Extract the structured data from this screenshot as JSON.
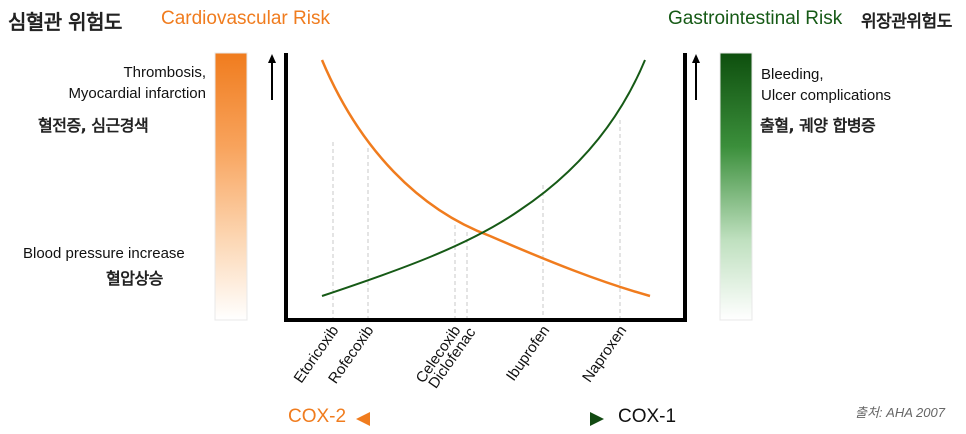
{
  "header": {
    "left_korean": "심혈관 위험도",
    "left_title": "Cardiovascular Risk",
    "right_title": "Gastrointestinal Risk",
    "right_korean": "위장관위험도"
  },
  "left_panel": {
    "top_label_en": "Thrombosis,\nMyocardial infarction",
    "top_label_ko": "혈전증, 심근경색",
    "bottom_label_en": "Blood pressure increase",
    "bottom_label_ko": "혈압상승"
  },
  "right_panel": {
    "top_label_en": "Bleeding,\nUlcer complications",
    "top_label_ko": "출혈, 궤양 합병증"
  },
  "drugs": [
    "Etoricoxib",
    "Rofecoxib",
    "Celecoxib",
    "Diclofenac",
    "Ibuprofen",
    "Naproxen"
  ],
  "axis": {
    "left_label": "COX-2",
    "right_label": "COX-1"
  },
  "source": "출처: AHA 2007",
  "colors": {
    "cardio_orange": "#f07c1e",
    "gi_green": "#165a16",
    "axis_black": "#000000"
  },
  "icons": {
    "left_up_arrow": "up-arrow-icon",
    "right_up_arrow": "up-arrow-icon"
  }
}
